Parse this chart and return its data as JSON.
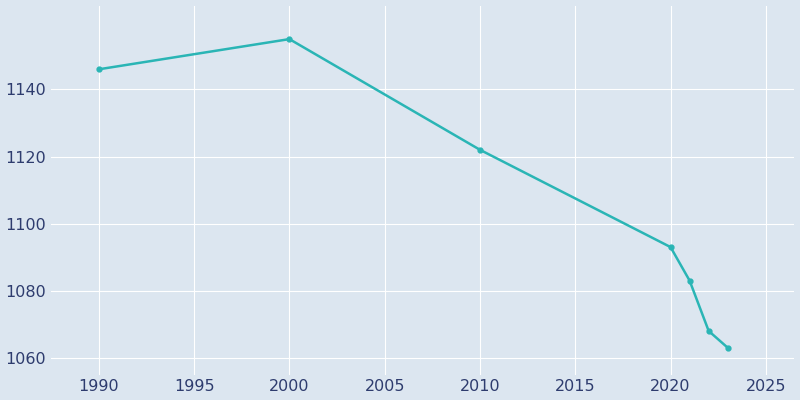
{
  "years": [
    1990,
    2000,
    2010,
    2020,
    2021,
    2022,
    2023
  ],
  "population": [
    1146,
    1155,
    1122,
    1093,
    1083,
    1068,
    1063
  ],
  "line_color": "#2ab5b5",
  "marker": "o",
  "marker_size": 3.5,
  "line_width": 1.8,
  "bg_color": "#dce6f0",
  "plot_bg_color": "#dce6f0",
  "grid_color": "#ffffff",
  "xlim": [
    1987.5,
    2026.5
  ],
  "ylim": [
    1055,
    1165
  ],
  "xticks": [
    1990,
    1995,
    2000,
    2005,
    2010,
    2015,
    2020,
    2025
  ],
  "yticks": [
    1060,
    1080,
    1100,
    1120,
    1140
  ],
  "tick_color": "#2e3c6e",
  "tick_fontsize": 11.5
}
